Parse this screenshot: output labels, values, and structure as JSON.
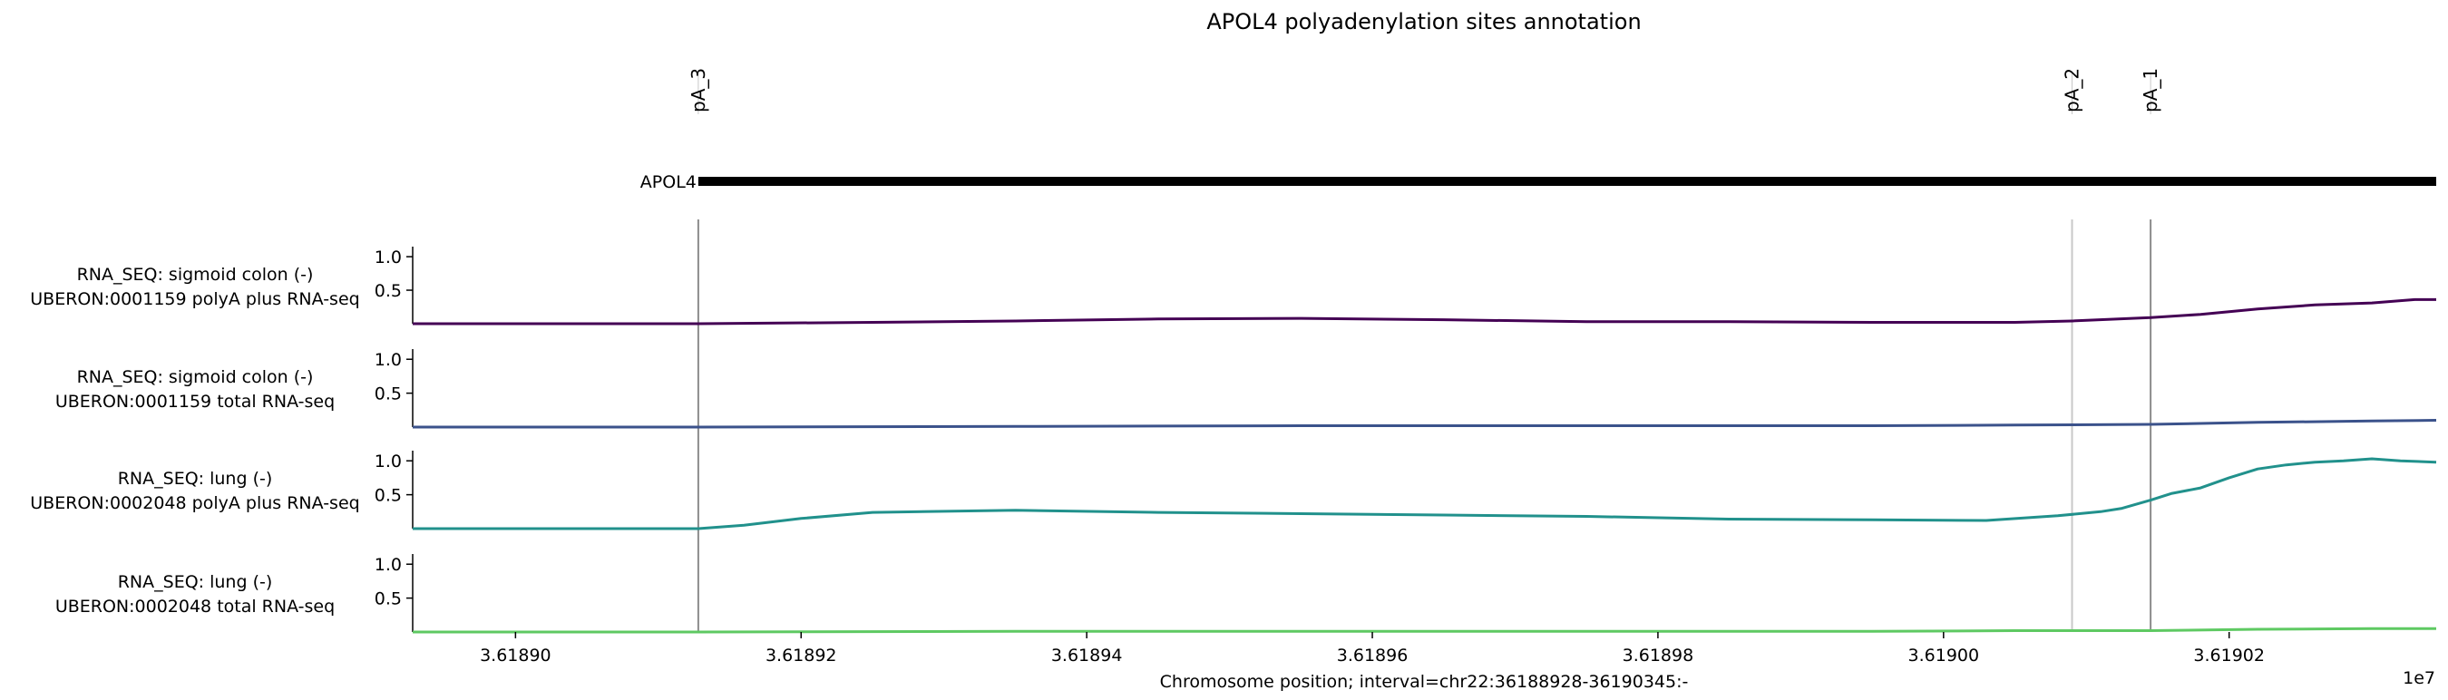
{
  "chart_data": {
    "type": "line",
    "title": "APOL4 polyadenylation sites annotation",
    "xlabel": "Chromosome position; interval=chr22:36188928-36190345:-",
    "x_offset_label": "1e7",
    "xlim": [
      3.6188928,
      3.6190345
    ],
    "x_ticks": [
      {
        "value": 3.6189,
        "label": "3.61890"
      },
      {
        "value": 3.61892,
        "label": "3.61892"
      },
      {
        "value": 3.61894,
        "label": "3.61894"
      },
      {
        "value": 3.61896,
        "label": "3.61896"
      },
      {
        "value": 3.61898,
        "label": "3.61898"
      },
      {
        "value": 3.619,
        "label": "3.61900"
      },
      {
        "value": 3.61902,
        "label": "3.61902"
      }
    ],
    "gene": {
      "name": "APOL4",
      "start": 3.6189128,
      "end": 3.6190345,
      "color": "#000000"
    },
    "pa_sites": [
      {
        "name": "pA_3",
        "position": 3.6189128,
        "line_color": "#8c8c8c"
      },
      {
        "name": "pA_2",
        "position": 3.619009,
        "line_color": "#c8c8c8"
      },
      {
        "name": "pA_1",
        "position": 3.6190145,
        "line_color": "#8c8c8c"
      }
    ],
    "y_ticks": [
      {
        "value": 0.5,
        "label": "0.5"
      },
      {
        "value": 1.0,
        "label": "1.0"
      }
    ],
    "ylim": [
      0,
      1.15
    ],
    "tracks": [
      {
        "label_line1": "RNA_SEQ: sigmoid colon (-)",
        "label_line2": "UBERON:0001159 polyA plus RNA-seq",
        "color": "#440154",
        "x": [
          3.6188928,
          3.6189128,
          3.618925,
          3.618935,
          3.618945,
          3.618955,
          3.618965,
          3.618975,
          3.618985,
          3.618995,
          3.619005,
          3.619009,
          3.6190145,
          3.619018,
          3.619022,
          3.619026,
          3.61903,
          3.619033,
          3.6190345
        ],
        "y": [
          0.0,
          0.0,
          0.02,
          0.04,
          0.07,
          0.08,
          0.06,
          0.03,
          0.03,
          0.02,
          0.02,
          0.04,
          0.09,
          0.14,
          0.22,
          0.28,
          0.31,
          0.36,
          0.36
        ]
      },
      {
        "label_line1": "RNA_SEQ: sigmoid colon (-)",
        "label_line2": "UBERON:0001159 total RNA-seq",
        "color": "#3b528b",
        "x": [
          3.6188928,
          3.6189128,
          3.618935,
          3.618955,
          3.618975,
          3.618995,
          3.619005,
          3.6190145,
          3.619022,
          3.61903,
          3.6190345
        ],
        "y": [
          0.0,
          0.0,
          0.01,
          0.02,
          0.02,
          0.02,
          0.03,
          0.04,
          0.07,
          0.09,
          0.1
        ]
      },
      {
        "label_line1": "RNA_SEQ: lung (-)",
        "label_line2": "UBERON:0002048 polyA plus RNA-seq",
        "color": "#21918c",
        "x": [
          3.6188928,
          3.6189128,
          3.618916,
          3.61892,
          3.618925,
          3.618935,
          3.618945,
          3.618955,
          3.618965,
          3.618975,
          3.618985,
          3.618995,
          3.619003,
          3.619008,
          3.619011,
          3.6190125,
          3.6190145,
          3.619016,
          3.619018,
          3.61902,
          3.619022,
          3.619024,
          3.619026,
          3.619028,
          3.61903,
          3.619032,
          3.6190345
        ],
        "y": [
          0.0,
          0.0,
          0.05,
          0.15,
          0.24,
          0.27,
          0.24,
          0.22,
          0.2,
          0.18,
          0.14,
          0.13,
          0.12,
          0.19,
          0.25,
          0.3,
          0.42,
          0.52,
          0.6,
          0.75,
          0.88,
          0.94,
          0.98,
          1.0,
          1.03,
          1.0,
          0.98
        ]
      },
      {
        "label_line1": "RNA_SEQ: lung (-)",
        "label_line2": "UBERON:0002048 total RNA-seq",
        "color": "#5ec962",
        "x": [
          3.6188928,
          3.6189128,
          3.618935,
          3.618955,
          3.618975,
          3.618995,
          3.619005,
          3.6190145,
          3.619022,
          3.61903,
          3.6190345
        ],
        "y": [
          0.0,
          0.0,
          0.01,
          0.01,
          0.01,
          0.01,
          0.02,
          0.02,
          0.04,
          0.05,
          0.05
        ]
      }
    ]
  }
}
